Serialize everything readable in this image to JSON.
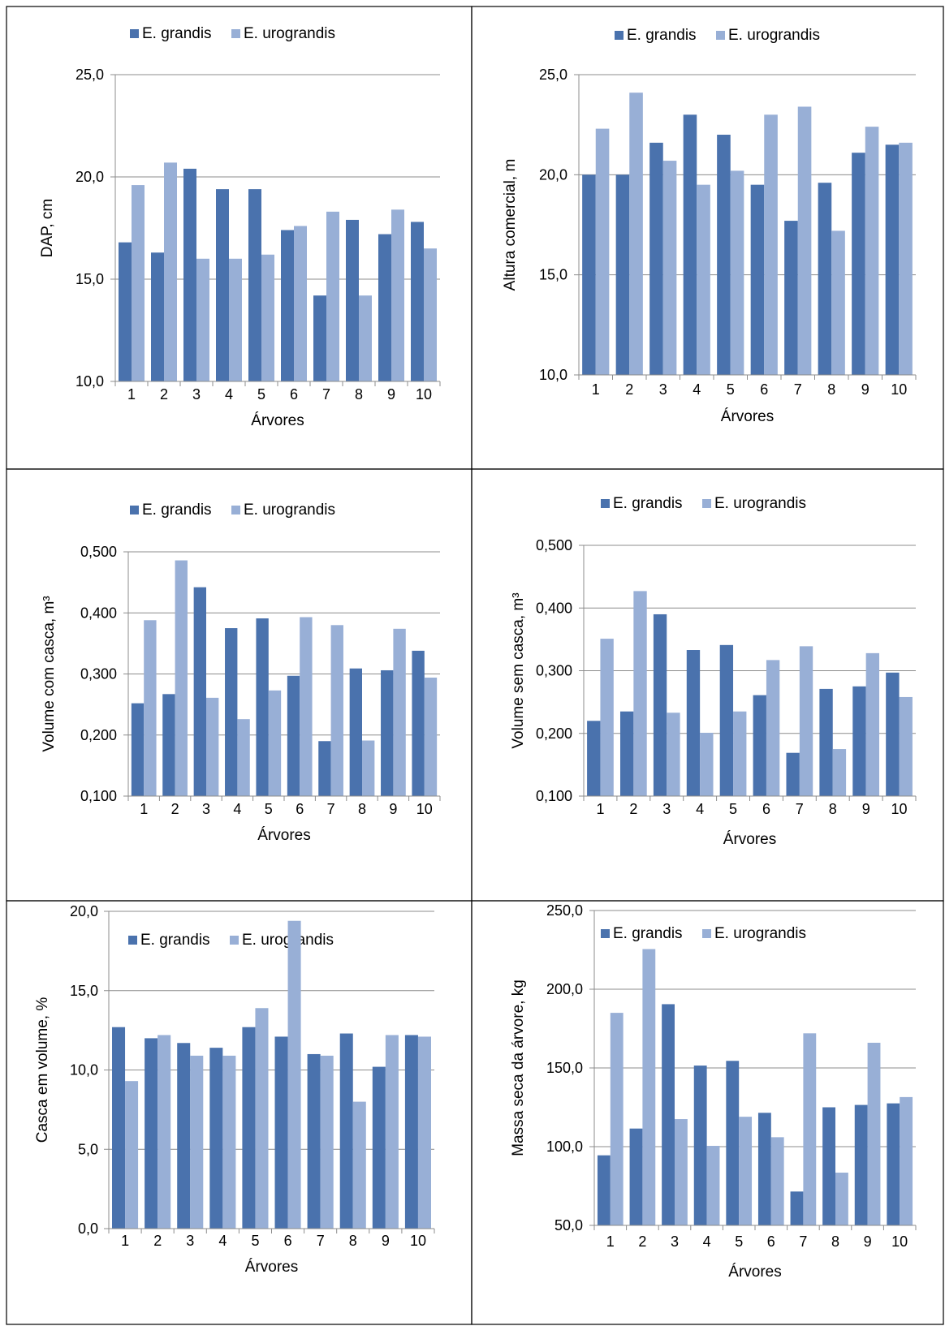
{
  "legend": {
    "series_names": [
      "E. grandis",
      "E. urograndis"
    ],
    "colors": [
      "#4a72ad",
      "#98afd6"
    ]
  },
  "chart_data": [
    {
      "type": "bar",
      "categories": [
        "1",
        "2",
        "3",
        "4",
        "5",
        "6",
        "7",
        "8",
        "9",
        "10"
      ],
      "series": [
        {
          "name": "E. grandis",
          "values": [
            16.8,
            16.3,
            20.4,
            19.4,
            19.4,
            17.4,
            14.2,
            17.9,
            17.2,
            17.8
          ]
        },
        {
          "name": "E. urograndis",
          "values": [
            19.6,
            20.7,
            16.0,
            16.0,
            16.2,
            17.6,
            18.3,
            14.2,
            18.4,
            16.5
          ]
        }
      ],
      "xlabel": "Árvores",
      "ylabel": "DAP, cm",
      "ylim": [
        10,
        25
      ],
      "yticks": [
        "10,0",
        "15,0",
        "20,0",
        "25,0"
      ],
      "grid": true,
      "legend_position": "top"
    },
    {
      "type": "bar",
      "categories": [
        "1",
        "2",
        "3",
        "4",
        "5",
        "6",
        "7",
        "8",
        "9",
        "10"
      ],
      "series": [
        {
          "name": "E. grandis",
          "values": [
            20.0,
            20.0,
            21.6,
            23.0,
            22.0,
            19.5,
            17.7,
            19.6,
            21.1,
            21.5
          ]
        },
        {
          "name": "E. urograndis",
          "values": [
            22.3,
            24.1,
            20.7,
            19.5,
            20.2,
            23.0,
            23.4,
            17.2,
            22.4,
            21.6
          ]
        }
      ],
      "xlabel": "Árvores",
      "ylabel": "Altura comercial, m",
      "ylim": [
        10,
        25
      ],
      "yticks": [
        "10,0",
        "15,0",
        "20,0",
        "25,0"
      ],
      "grid": true,
      "legend_position": "top"
    },
    {
      "type": "bar",
      "categories": [
        "1",
        "2",
        "3",
        "4",
        "5",
        "6",
        "7",
        "8",
        "9",
        "10"
      ],
      "series": [
        {
          "name": "E. grandis",
          "values": [
            0.252,
            0.267,
            0.442,
            0.375,
            0.391,
            0.297,
            0.19,
            0.309,
            0.306,
            0.338
          ]
        },
        {
          "name": "E. urograndis",
          "values": [
            0.388,
            0.486,
            0.261,
            0.226,
            0.273,
            0.393,
            0.38,
            0.191,
            0.374,
            0.294
          ]
        }
      ],
      "xlabel": "Árvores",
      "ylabel": "Volume com casca, m³",
      "ylim": [
        0.1,
        0.5
      ],
      "yticks": [
        "0,100",
        "0,200",
        "0,300",
        "0,400",
        "0,500"
      ],
      "grid": true,
      "legend_position": "top"
    },
    {
      "type": "bar",
      "categories": [
        "1",
        "2",
        "3",
        "4",
        "5",
        "6",
        "7",
        "8",
        "9",
        "10"
      ],
      "series": [
        {
          "name": "E. grandis",
          "values": [
            0.22,
            0.235,
            0.39,
            0.333,
            0.341,
            0.261,
            0.169,
            0.271,
            0.275,
            0.297
          ]
        },
        {
          "name": "E. urograndis",
          "values": [
            0.351,
            0.427,
            0.233,
            0.201,
            0.235,
            0.317,
            0.339,
            0.175,
            0.328,
            0.258
          ]
        }
      ],
      "xlabel": "Árvores",
      "ylabel": "Volume sem casca, m³",
      "ylim": [
        0.1,
        0.5
      ],
      "yticks": [
        "0,100",
        "0,200",
        "0,300",
        "0,400",
        "0,500"
      ],
      "grid": true,
      "legend_position": "top"
    },
    {
      "type": "bar",
      "categories": [
        "1",
        "2",
        "3",
        "4",
        "5",
        "6",
        "7",
        "8",
        "9",
        "10"
      ],
      "series": [
        {
          "name": "E. grandis",
          "values": [
            12.7,
            12.0,
            11.7,
            11.4,
            12.7,
            12.1,
            11.0,
            12.3,
            10.2,
            12.2
          ]
        },
        {
          "name": "E. urograndis",
          "values": [
            9.3,
            12.2,
            10.9,
            10.9,
            13.9,
            19.4,
            10.9,
            8.0,
            12.2,
            12.1
          ]
        }
      ],
      "xlabel": "Árvores",
      "ylabel": "Casca em volume, %",
      "ylim": [
        0,
        20
      ],
      "yticks": [
        "0,0",
        "5,0",
        "10,0",
        "15,0",
        "20,0"
      ],
      "grid": true,
      "legend_position": "top"
    },
    {
      "type": "bar",
      "categories": [
        "1",
        "2",
        "3",
        "4",
        "5",
        "6",
        "7",
        "8",
        "9",
        "10"
      ],
      "series": [
        {
          "name": "E. grandis",
          "values": [
            94.5,
            111.5,
            190.5,
            151.5,
            154.5,
            121.5,
            71.5,
            125.0,
            126.5,
            127.5
          ]
        },
        {
          "name": "E. urograndis",
          "values": [
            185.0,
            225.5,
            117.5,
            100.5,
            119.0,
            106.0,
            172.0,
            83.5,
            166.0,
            131.5
          ]
        }
      ],
      "xlabel": "Árvores",
      "ylabel": "Massa seca da árvore, kg",
      "ylim": [
        50,
        250
      ],
      "yticks": [
        "50,0",
        "100,0",
        "150,0",
        "200,0",
        "250,0"
      ],
      "grid": true,
      "legend_position": "top"
    }
  ]
}
